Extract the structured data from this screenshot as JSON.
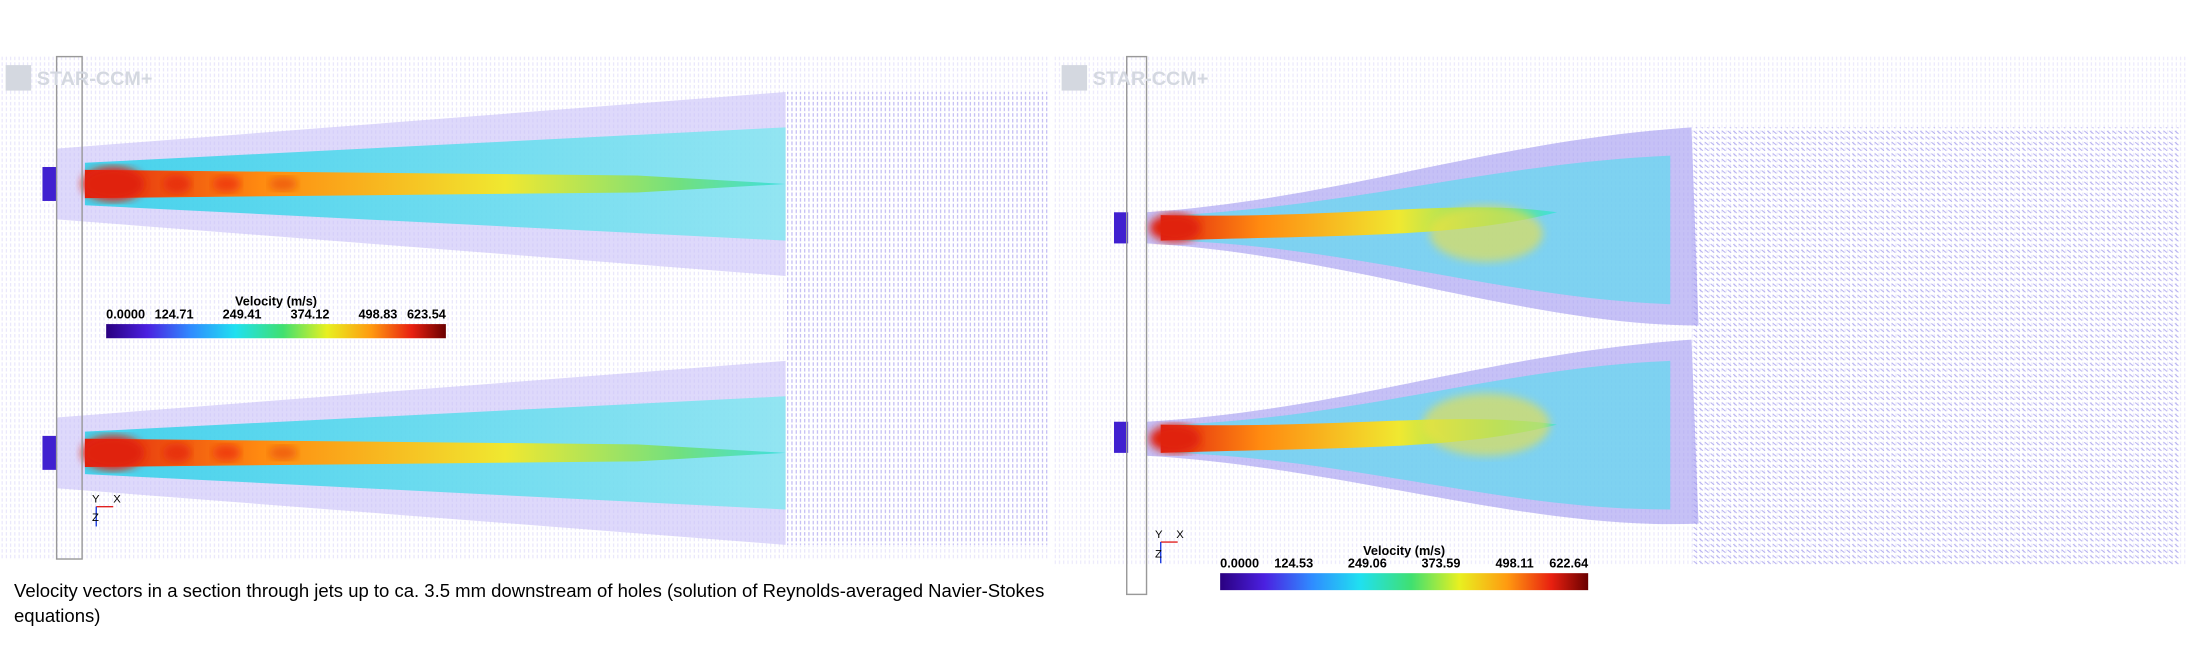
{
  "panels": [
    {
      "watermark": "STAR-CCM+",
      "legend": {
        "title": "Velocity (m/s)",
        "ticks": [
          "0.0000",
          "124.71",
          "249.41",
          "374.12",
          "498.83",
          "623.54"
        ]
      },
      "axes": [
        "Y",
        "X",
        "Z"
      ]
    },
    {
      "watermark": "STAR-CCM+",
      "legend": {
        "title": "Velocity (m/s)",
        "ticks": [
          "0.0000",
          "124.53",
          "249.06",
          "373.59",
          "498.11",
          "622.64"
        ]
      },
      "axes": [
        "Y",
        "X",
        "Z"
      ]
    }
  ],
  "caption": "Velocity vectors in a section through jets up to ca. 3.5 mm downstream of holes (solution of Reynolds-averaged Navier-Stokes equations)"
}
